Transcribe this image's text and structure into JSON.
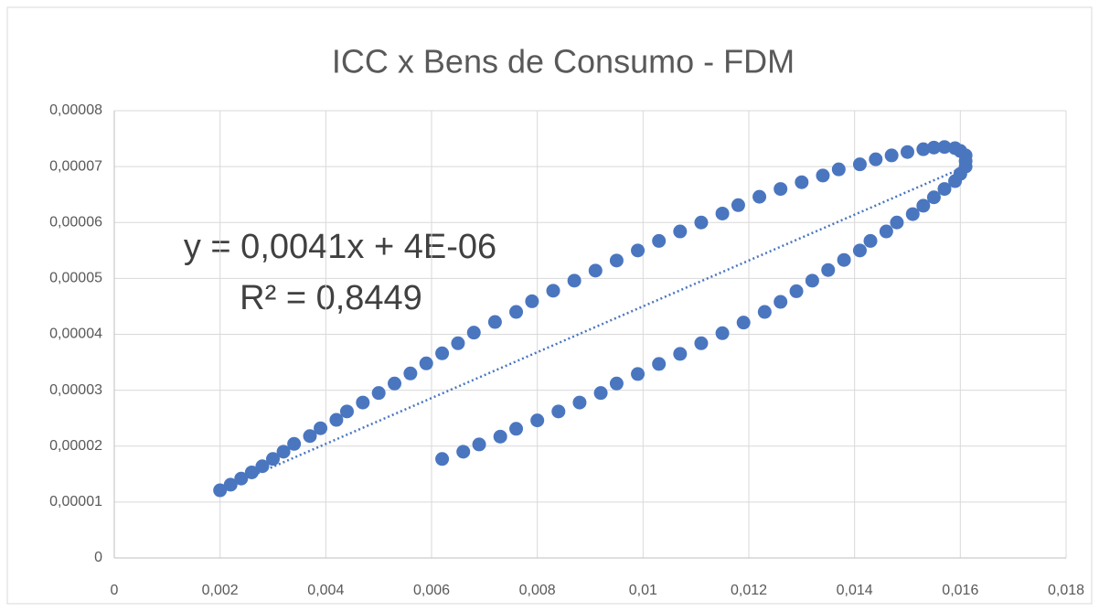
{
  "chart_data": {
    "type": "scatter",
    "title": "ICC x Bens de Consumo - FDM",
    "color": "#4a76bf",
    "grid": true,
    "x": [
      0.002,
      0.0022,
      0.0024,
      0.0026,
      0.0028,
      0.003,
      0.0032,
      0.0034,
      0.0037,
      0.0039,
      0.0042,
      0.0044,
      0.0047,
      0.005,
      0.0053,
      0.0056,
      0.0059,
      0.0062,
      0.0065,
      0.0068,
      0.0072,
      0.0076,
      0.0079,
      0.0083,
      0.0087,
      0.0091,
      0.0095,
      0.0099,
      0.0103,
      0.0107,
      0.0111,
      0.0115,
      0.0118,
      0.0122,
      0.0126,
      0.013,
      0.0134,
      0.0137,
      0.0141,
      0.0144,
      0.0147,
      0.015,
      0.0153,
      0.0155,
      0.0157,
      0.0159,
      0.016,
      0.0161,
      0.0161,
      0.0161,
      0.016,
      0.0159,
      0.0157,
      0.0155,
      0.0153,
      0.0151,
      0.0148,
      0.0146,
      0.0143,
      0.0141,
      0.0138,
      0.0135,
      0.0132,
      0.0129,
      0.0126,
      0.0123,
      0.0119,
      0.0115,
      0.0111,
      0.0107,
      0.0103,
      0.0099,
      0.0095,
      0.0092,
      0.0088,
      0.0084,
      0.008,
      0.0076,
      0.0073,
      0.0069,
      0.0066,
      0.0062
    ],
    "values": [
      1.21e-05,
      1.31e-05,
      1.42e-05,
      1.53e-05,
      1.64e-05,
      1.77e-05,
      1.9e-05,
      2.04e-05,
      2.18e-05,
      2.32e-05,
      2.47e-05,
      2.62e-05,
      2.78e-05,
      2.95e-05,
      3.12e-05,
      3.3e-05,
      3.48e-05,
      3.66e-05,
      3.84e-05,
      4.03e-05,
      4.22e-05,
      4.4e-05,
      4.59e-05,
      4.78e-05,
      4.96e-05,
      5.14e-05,
      5.32e-05,
      5.5e-05,
      5.67e-05,
      5.84e-05,
      6e-05,
      6.16e-05,
      6.31e-05,
      6.46e-05,
      6.6e-05,
      6.72e-05,
      6.84e-05,
      6.95e-05,
      7.04e-05,
      7.13e-05,
      7.2e-05,
      7.26e-05,
      7.31e-05,
      7.34e-05,
      7.35e-05,
      7.33e-05,
      7.28e-05,
      7.2e-05,
      7.1e-05,
      7e-05,
      6.87e-05,
      6.74e-05,
      6.6e-05,
      6.45e-05,
      6.3e-05,
      6.15e-05,
      6e-05,
      5.84e-05,
      5.67e-05,
      5.5e-05,
      5.33e-05,
      5.15e-05,
      4.96e-05,
      4.77e-05,
      4.58e-05,
      4.4e-05,
      4.21e-05,
      4.02e-05,
      3.84e-05,
      3.65e-05,
      3.47e-05,
      3.29e-05,
      3.12e-05,
      2.95e-05,
      2.78e-05,
      2.62e-05,
      2.46e-05,
      2.31e-05,
      2.17e-05,
      2.03e-05,
      1.9e-05,
      1.77e-05
    ],
    "xlim": [
      0,
      0.018
    ],
    "xticks": [
      0,
      {
        "value": 0.002,
        "label": "0,002"
      },
      {
        "value": 0.004,
        "label": "0,004"
      },
      {
        "value": 0.006,
        "label": "0,006"
      },
      {
        "value": 0.008,
        "label": "0,008"
      },
      {
        "value": 0.01,
        "label": "0,01"
      },
      {
        "value": 0.012,
        "label": "0,012"
      },
      {
        "value": 0.014,
        "label": "0,014"
      },
      {
        "value": 0.016,
        "label": "0,016"
      },
      {
        "value": 0.018,
        "label": "0,018"
      }
    ],
    "ylim": [
      0,
      8e-05
    ],
    "yticks": [
      0,
      {
        "value": 1e-05,
        "label": "0,00001"
      },
      {
        "value": 2e-05,
        "label": "0,00002"
      },
      {
        "value": 3e-05,
        "label": "0,00003"
      },
      {
        "value": 4e-05,
        "label": "0,00004"
      },
      {
        "value": 5e-05,
        "label": "0,00005"
      },
      {
        "value": 6e-05,
        "label": "0,00006"
      },
      {
        "value": 7e-05,
        "label": "0,00007"
      },
      {
        "value": 8e-05,
        "label": "0,00008"
      }
    ],
    "trendline": {
      "slope": 0.0041,
      "intercept": 4e-06,
      "equation": "y = 0,0041x + 4E-06",
      "r2_label": "R² = 0,8449"
    }
  }
}
